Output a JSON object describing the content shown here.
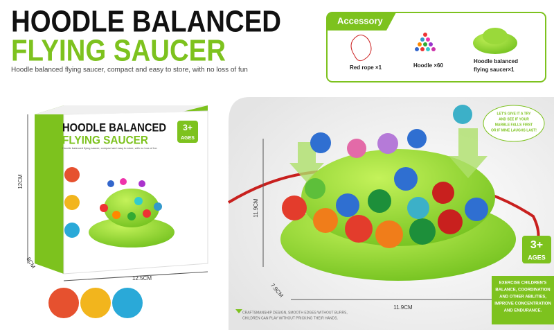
{
  "header": {
    "title_line1": "HOODLE BALANCED",
    "title_line2": "FLYING SAUCER",
    "subtitle": "Hoodle balanced flying saucer, compact and easy to store, with no loss of fun"
  },
  "accessory": {
    "title": "Accessory",
    "rope": "Red rope ×1",
    "hoodle": "Hoodle ×60",
    "saucer_lines": [
      "Hoodle balanced",
      "flying saucer×1"
    ]
  },
  "package": {
    "title_line1": "HOODLE BALANCED",
    "title_line2": "FLYING SAUCER",
    "tagline": "Hoodle balanced flying saucer, compact and easy to store, with no loss of fun",
    "age_number": "3+",
    "age_label": "AGES",
    "height": "12CM",
    "depth": "8CM",
    "width": "12.5CM"
  },
  "product": {
    "height": "11.9CM",
    "depth": "7.9CM",
    "width": "11.9CM",
    "age_number": "3+",
    "age_label": "AGES",
    "speech_lines": [
      "LET'S GIVE IT A TRY",
      "AND SEE IF YOUR",
      "MARBLE FALLS FIRST",
      "OR IF MINE LAUGHS LAST!"
    ],
    "feature_lines": [
      "EXERCISE CHILDREN'S",
      "BALANCE, COORDINATION",
      "AND OTHER ABILITIES,",
      "IMPROVE CONCENTRATION",
      "AND ENDURANCE."
    ],
    "craft_lines": [
      "CRAFTSMANSHIP DESIGN, SMOOTH EDGES WITHOUT BURRS,",
      "CHILDREN CAN PLAY WITHOUT PRICKING THEIR HANDS."
    ]
  }
}
